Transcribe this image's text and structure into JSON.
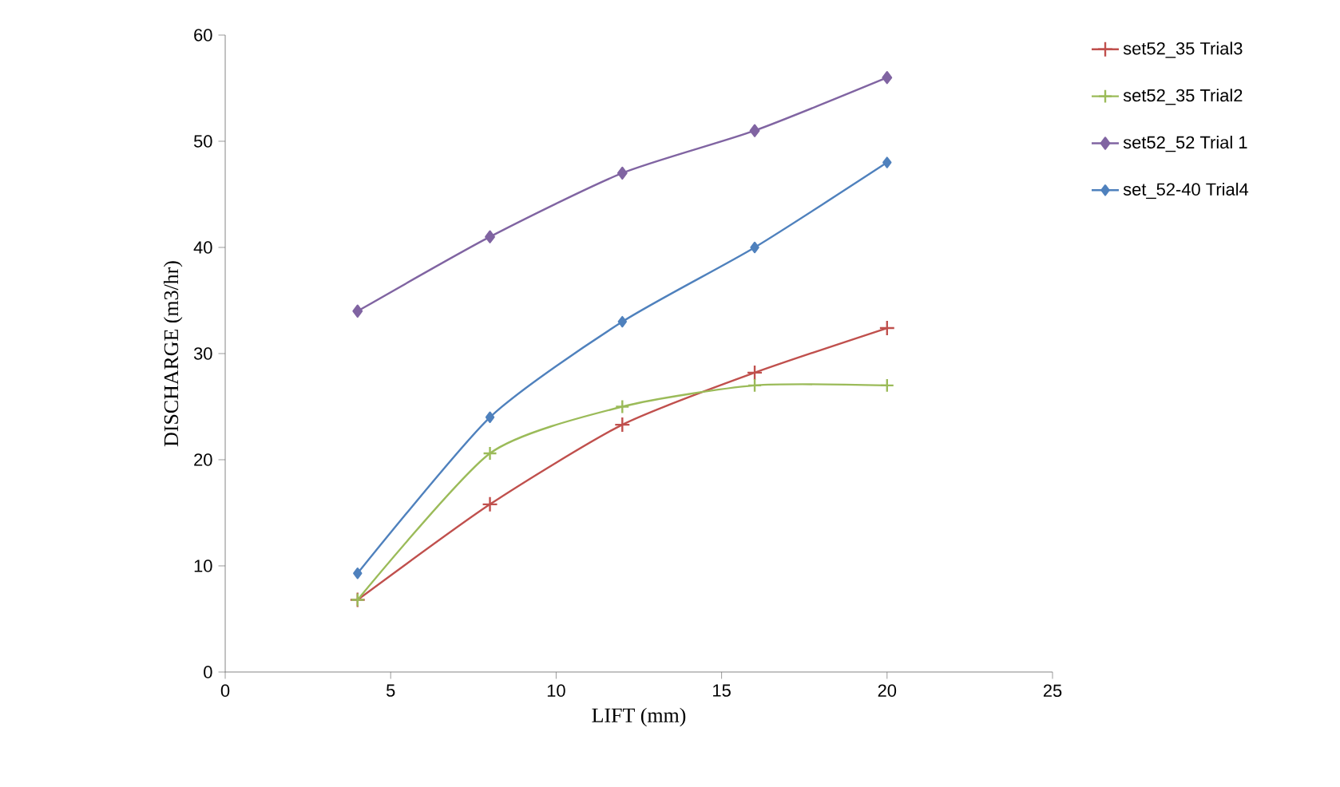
{
  "chart_data": {
    "type": "line",
    "xlabel": "LIFT (mm)",
    "ylabel": "DISCHARGE (m3/hr)",
    "x": [
      4,
      8,
      12,
      16,
      20
    ],
    "xlim": [
      0,
      25
    ],
    "xticks": [
      0,
      5,
      10,
      15,
      20,
      25
    ],
    "ylim": [
      0,
      60
    ],
    "yticks": [
      0,
      10,
      20,
      30,
      40,
      50,
      60
    ],
    "grid": false,
    "legend": "right",
    "series": [
      {
        "name": "set52_35 Trial3",
        "color": "#c0504d",
        "marker": "cross",
        "values": [
          6.8,
          15.8,
          23.3,
          28.2,
          32.4
        ]
      },
      {
        "name": "set52_35 Trial2",
        "color": "#9bbb59",
        "marker": "cross",
        "values": [
          6.8,
          20.6,
          25,
          27,
          27
        ]
      },
      {
        "name": "set52_52 Trial 1",
        "color": "#8064a2",
        "marker": "diamond",
        "values": [
          34,
          41,
          47,
          51,
          56
        ]
      },
      {
        "name": "set_52-40 Trial4",
        "color": "#4f81bd",
        "marker": "diamond",
        "values": [
          9.3,
          24,
          33,
          40,
          48
        ]
      }
    ]
  }
}
